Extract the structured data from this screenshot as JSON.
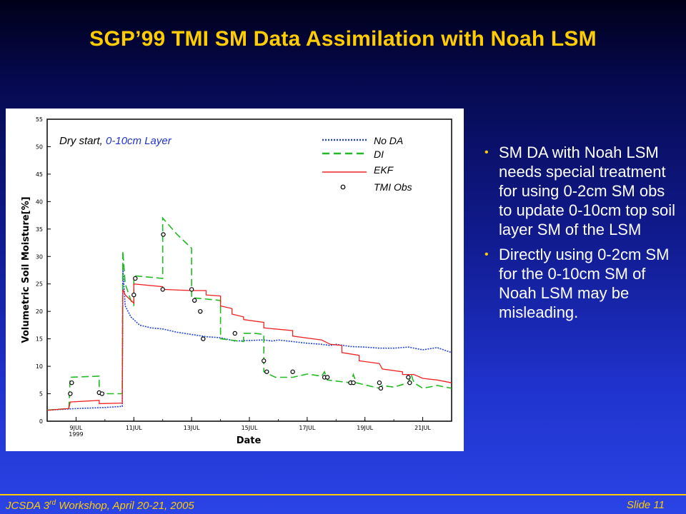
{
  "slide": {
    "title": "SGP’99 TMI SM Data Assimilation with Noah LSM",
    "bullets": [
      "SM DA with Noah LSM needs special treatment for using 0-2cm SM obs to update 0-10cm top soil layer SM of the LSM",
      "Directly using 0-2cm SM for the 0-10cm SM of Noah LSM may be misleading."
    ],
    "footer_left_pre": "JCSDA 3",
    "footer_left_sup": "rd",
    "footer_left_post": " Workshop, April 20-21, 2005",
    "footer_right": "Slide 11"
  },
  "colors": {
    "title": "#ffcc00",
    "no_da": "#2244dd",
    "di": "#22bb22",
    "ekf": "#ee2222",
    "obs": "#000000"
  },
  "chart_data": {
    "type": "line",
    "annotation_prefix": "Dry start, ",
    "annotation_suffix": "0-10cm Layer",
    "xlabel": "Date",
    "ylabel": "Volumetric Soil Moisture[%]",
    "ylim": [
      0,
      55
    ],
    "yticks": [
      0,
      5,
      10,
      15,
      20,
      25,
      30,
      35,
      40,
      45,
      50,
      55
    ],
    "xlim": [
      8.0,
      22.0
    ],
    "xticks": [
      {
        "x": 9,
        "label": "9JUL",
        "sub": "1999"
      },
      {
        "x": 11,
        "label": "11JUL"
      },
      {
        "x": 13,
        "label": "13JUL"
      },
      {
        "x": 15,
        "label": "15JUL"
      },
      {
        "x": 17,
        "label": "17JUL"
      },
      {
        "x": 19,
        "label": "19JUL"
      },
      {
        "x": 21,
        "label": "21JUL"
      }
    ],
    "x_units": "day of July 1999",
    "legend_position": "top-right",
    "series": [
      {
        "name": "No DA",
        "style": "dotted",
        "points": [
          [
            8.0,
            2.0
          ],
          [
            9.0,
            2.3
          ],
          [
            10.0,
            2.5
          ],
          [
            10.6,
            2.7
          ],
          [
            10.62,
            28.0
          ],
          [
            10.7,
            21.0
          ],
          [
            10.9,
            19.0
          ],
          [
            11.2,
            17.5
          ],
          [
            11.6,
            17.0
          ],
          [
            12.0,
            16.8
          ],
          [
            12.5,
            16.2
          ],
          [
            13.0,
            15.8
          ],
          [
            13.5,
            15.4
          ],
          [
            14.0,
            15.2
          ],
          [
            14.5,
            14.6
          ],
          [
            15.0,
            14.7
          ],
          [
            15.5,
            14.8
          ],
          [
            15.8,
            14.6
          ],
          [
            16.0,
            14.8
          ],
          [
            16.5,
            14.5
          ],
          [
            17.0,
            14.2
          ],
          [
            17.5,
            14.0
          ],
          [
            17.8,
            13.8
          ],
          [
            18.0,
            14.0
          ],
          [
            18.5,
            13.6
          ],
          [
            19.0,
            13.5
          ],
          [
            19.5,
            13.3
          ],
          [
            20.0,
            13.3
          ],
          [
            20.5,
            13.5
          ],
          [
            21.0,
            13.0
          ],
          [
            21.5,
            13.4
          ],
          [
            22.0,
            12.5
          ]
        ]
      },
      {
        "name": "DI",
        "style": "dashed",
        "points": [
          [
            8.0,
            2.0
          ],
          [
            8.75,
            2.3
          ],
          [
            8.8,
            8.0
          ],
          [
            9.8,
            8.2
          ],
          [
            9.8,
            5.0
          ],
          [
            10.6,
            5.0
          ],
          [
            10.62,
            31.0
          ],
          [
            10.7,
            25.0
          ],
          [
            10.9,
            22.0
          ],
          [
            11.0,
            21.0
          ],
          [
            11.0,
            26.5
          ],
          [
            12.0,
            26.0
          ],
          [
            12.0,
            37.0
          ],
          [
            12.5,
            34.0
          ],
          [
            13.0,
            31.5
          ],
          [
            13.0,
            22.5
          ],
          [
            14.0,
            22.0
          ],
          [
            14.0,
            15.0
          ],
          [
            14.8,
            14.5
          ],
          [
            14.8,
            16.0
          ],
          [
            15.2,
            16.0
          ],
          [
            15.5,
            15.8
          ],
          [
            15.5,
            9.0
          ],
          [
            15.9,
            8.0
          ],
          [
            16.5,
            8.0
          ],
          [
            17.0,
            8.6
          ],
          [
            17.5,
            8.2
          ],
          [
            17.6,
            9.0
          ],
          [
            17.7,
            7.5
          ],
          [
            18.5,
            7.0
          ],
          [
            18.6,
            8.5
          ],
          [
            18.7,
            7.0
          ],
          [
            19.5,
            6.0
          ],
          [
            19.6,
            6.5
          ],
          [
            20.0,
            6.2
          ],
          [
            20.5,
            7.0
          ],
          [
            20.6,
            8.5
          ],
          [
            20.7,
            7.0
          ],
          [
            21.0,
            6.0
          ],
          [
            21.5,
            6.5
          ],
          [
            22.0,
            6.0
          ]
        ]
      },
      {
        "name": "EKF",
        "style": "solid",
        "points": [
          [
            8.0,
            2.0
          ],
          [
            8.75,
            2.3
          ],
          [
            8.8,
            3.5
          ],
          [
            9.8,
            3.8
          ],
          [
            9.8,
            3.2
          ],
          [
            10.6,
            3.3
          ],
          [
            10.62,
            24.0
          ],
          [
            10.7,
            23.0
          ],
          [
            11.0,
            21.5
          ],
          [
            11.0,
            25.0
          ],
          [
            12.0,
            24.5
          ],
          [
            12.0,
            24.0
          ],
          [
            13.0,
            23.8
          ],
          [
            13.5,
            23.8
          ],
          [
            13.5,
            23.0
          ],
          [
            14.0,
            22.8
          ],
          [
            14.0,
            21.0
          ],
          [
            14.4,
            20.5
          ],
          [
            14.4,
            19.5
          ],
          [
            14.8,
            19.0
          ],
          [
            14.8,
            18.5
          ],
          [
            15.5,
            18.0
          ],
          [
            15.5,
            17.0
          ],
          [
            16.5,
            16.5
          ],
          [
            16.5,
            15.5
          ],
          [
            17.5,
            14.8
          ],
          [
            17.8,
            14.0
          ],
          [
            18.2,
            13.8
          ],
          [
            18.2,
            12.5
          ],
          [
            18.8,
            12.0
          ],
          [
            18.8,
            11.0
          ],
          [
            19.5,
            10.5
          ],
          [
            19.6,
            9.5
          ],
          [
            20.3,
            9.0
          ],
          [
            20.3,
            8.5
          ],
          [
            20.7,
            8.5
          ],
          [
            21.0,
            7.8
          ],
          [
            21.5,
            7.5
          ],
          [
            22.0,
            7.0
          ]
        ]
      },
      {
        "name": "TMI Obs",
        "style": "marker",
        "points": [
          [
            8.8,
            5.0
          ],
          [
            8.85,
            7.0
          ],
          [
            9.8,
            5.2
          ],
          [
            9.9,
            5.0
          ],
          [
            11.0,
            23.0
          ],
          [
            11.05,
            26.0
          ],
          [
            12.0,
            24.0
          ],
          [
            12.02,
            34.0
          ],
          [
            13.0,
            24.0
          ],
          [
            13.1,
            22.0
          ],
          [
            13.3,
            20.0
          ],
          [
            13.4,
            15.0
          ],
          [
            14.5,
            16.0
          ],
          [
            15.5,
            11.0
          ],
          [
            15.6,
            9.0
          ],
          [
            16.5,
            9.0
          ],
          [
            17.6,
            8.0
          ],
          [
            17.7,
            8.0
          ],
          [
            18.5,
            7.0
          ],
          [
            18.6,
            7.0
          ],
          [
            19.5,
            7.0
          ],
          [
            19.55,
            6.0
          ],
          [
            20.5,
            8.0
          ],
          [
            20.55,
            7.0
          ]
        ]
      }
    ]
  }
}
